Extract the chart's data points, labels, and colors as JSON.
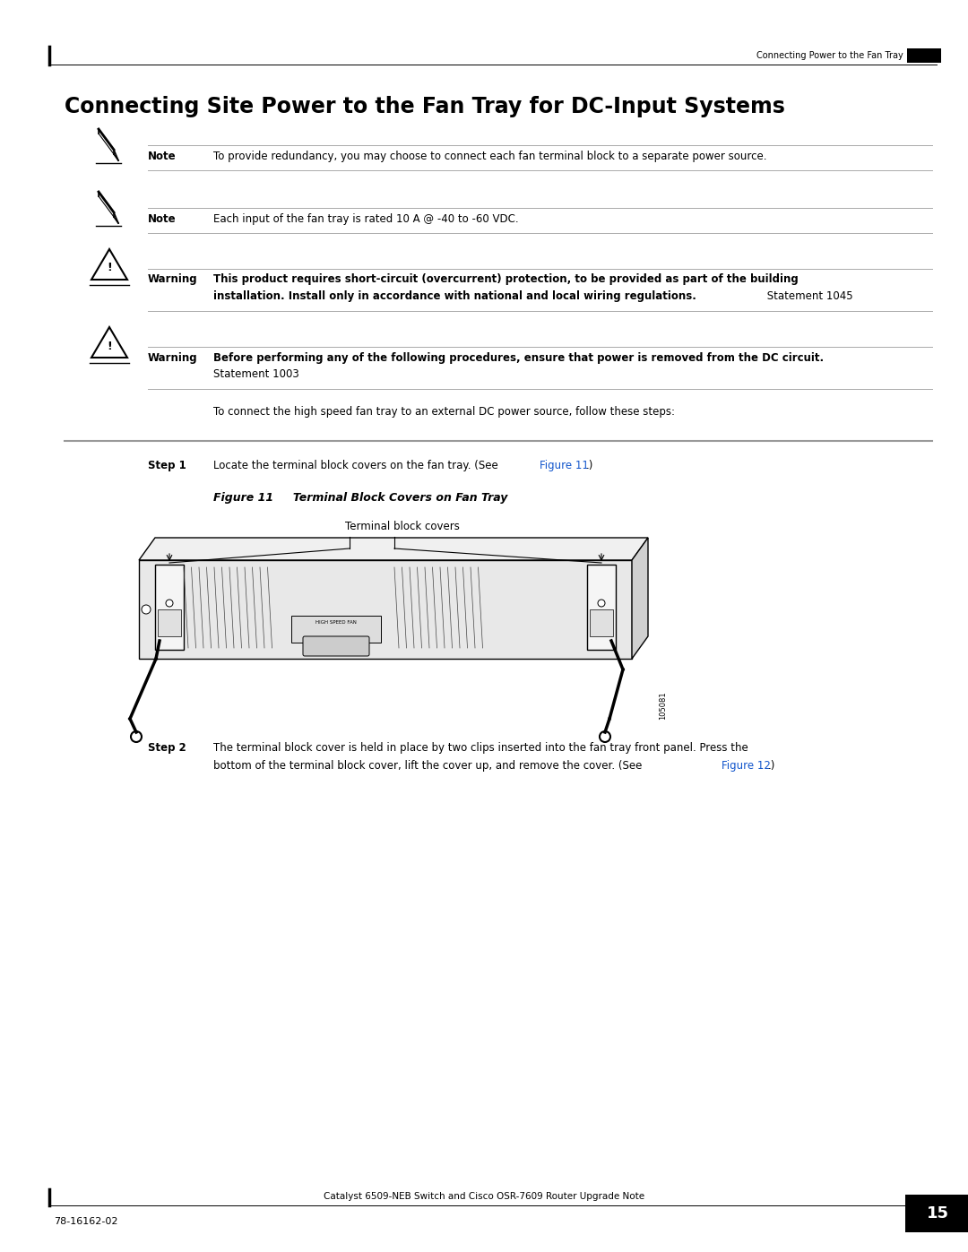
{
  "page_title": "Connecting Site Power to the Fan Tray for DC-Input Systems",
  "header_right": "Connecting Power to the Fan Tray",
  "footer_left": "78-16162-02",
  "footer_center": "Catalyst 6509-NEB Switch and Cisco OSR-7609 Router Upgrade Note",
  "footer_page": "15",
  "note1_text": "To provide redundancy, you may choose to connect each fan terminal block to a separate power source.",
  "note2_text": "Each input of the fan tray is rated 10 A @ -40 to -60 VDC.",
  "warning1_line1": "This product requires short-circuit (overcurrent) protection, to be provided as part of the building",
  "warning1_line2_bold": "installation. Install only in accordance with national and local wiring regulations.",
  "warning1_line2_normal": " Statement 1045",
  "warning2_line1": "Before performing any of the following procedures, ensure that power is removed from the DC circuit.",
  "warning2_line2": "Statement 1003",
  "intro_text": "To connect the high speed fan tray to an external DC power source, follow these steps:",
  "step1_label": "Step 1",
  "step1_text": "Locate the terminal block covers on the fan tray. (See ",
  "step1_link": "Figure 11",
  "step1_end": ".)",
  "figure_label": "Figure 11",
  "figure_title": "     Terminal Block Covers on Fan Tray",
  "figure_caption": "Terminal block covers",
  "step2_label": "Step 2",
  "step2_text1": "The terminal block cover is held in place by two clips inserted into the fan tray front panel. Press the",
  "step2_text2": "bottom of the terminal block cover, lift the cover up, and remove the cover. (See ",
  "step2_link": "Figure 12",
  "step2_end": ".)",
  "link_color": "#1155CC",
  "bg_color": "#ffffff",
  "text_color": "#000000"
}
